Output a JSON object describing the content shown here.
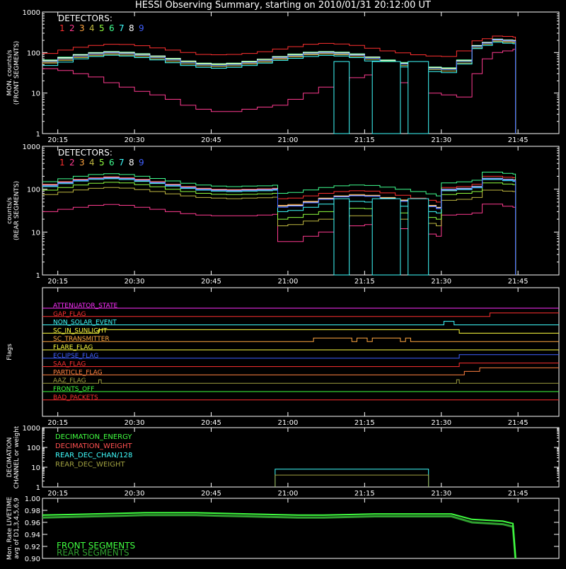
{
  "title": "HESSI Observing Summary, starting on 2010/01/31 20:12:00 UT",
  "colors": {
    "background": "#000000",
    "axis": "#ffffff",
    "det": [
      "#ff3030",
      "#ff3b8f",
      "#ffa640",
      "#c0b840",
      "#90ff40",
      "#40ff90",
      "#40ffff",
      "#ffffff",
      "#4060ff"
    ]
  },
  "time_ticks": [
    "20:15",
    "20:30",
    "20:45",
    "21:00",
    "21:15",
    "21:30",
    "21:45"
  ],
  "chart_data": [
    {
      "type": "line",
      "id": "front",
      "ylabel_lines": [
        "MON. counts/s",
        "(FRONT SEGMENTS)"
      ],
      "y_ticks": [
        "1",
        "10",
        "100",
        "1000"
      ],
      "ylim": [
        1,
        1000
      ],
      "log": true,
      "legend_title": "DETECTORS:",
      "legend_numbers": [
        "1",
        "2",
        "3",
        "4",
        "5",
        "6",
        "7",
        "8",
        "9"
      ],
      "x_minutes": [
        0,
        3,
        6,
        9,
        12,
        15,
        18,
        21,
        24,
        27,
        30,
        33,
        36,
        39,
        42,
        45,
        48,
        51,
        54,
        57,
        60,
        63,
        66,
        69,
        72,
        75,
        78,
        81,
        84,
        86,
        88,
        90,
        92,
        92.5
      ],
      "series": [
        {
          "det": 0,
          "values": [
            95,
            115,
            135,
            150,
            160,
            158,
            148,
            130,
            115,
            100,
            90,
            88,
            90,
            95,
            105,
            122,
            140,
            160,
            168,
            162,
            150,
            128,
            110,
            98,
            88,
            82,
            80,
            110,
            195,
            220,
            255,
            250,
            240,
            1
          ]
        },
        {
          "det": 1,
          "values": [
            40,
            36,
            30,
            25,
            18,
            14,
            11,
            9,
            7,
            5,
            4,
            3.5,
            3.5,
            4,
            4.5,
            5,
            7,
            10,
            14,
            20,
            24,
            28,
            25,
            18,
            14,
            10,
            9,
            8,
            30,
            70,
            100,
            110,
            120,
            1
          ]
        },
        {
          "det": 2,
          "values": [
            58,
            68,
            80,
            90,
            96,
            92,
            85,
            75,
            65,
            56,
            50,
            48,
            50,
            55,
            62,
            72,
            82,
            92,
            96,
            92,
            85,
            72,
            60,
            52,
            45,
            40,
            38,
            60,
            140,
            170,
            200,
            190,
            185,
            1
          ]
        },
        {
          "det": 3,
          "values": [
            55,
            64,
            75,
            84,
            90,
            86,
            80,
            70,
            60,
            52,
            47,
            45,
            47,
            52,
            58,
            68,
            78,
            88,
            92,
            88,
            80,
            68,
            56,
            48,
            42,
            38,
            35,
            55,
            130,
            160,
            190,
            180,
            175,
            1
          ]
        },
        {
          "det": 4,
          "values": [
            62,
            72,
            84,
            94,
            100,
            96,
            88,
            78,
            68,
            58,
            52,
            50,
            52,
            58,
            65,
            76,
            86,
            96,
            100,
            96,
            88,
            74,
            62,
            54,
            47,
            42,
            40,
            62,
            145,
            175,
            210,
            200,
            195,
            1
          ]
        },
        {
          "det": 5,
          "values": [
            66,
            77,
            90,
            100,
            106,
            102,
            94,
            83,
            72,
            62,
            55,
            53,
            55,
            61,
            69,
            80,
            92,
            102,
            106,
            102,
            93,
            78,
            66,
            57,
            49,
            44,
            42,
            66,
            150,
            180,
            215,
            205,
            200,
            1
          ]
        },
        {
          "det": 6,
          "values": [
            48,
            58,
            70,
            80,
            86,
            82,
            75,
            66,
            56,
            48,
            43,
            41,
            43,
            48,
            55,
            64,
            72,
            80,
            85,
            82,
            75,
            62,
            50,
            44,
            38,
            34,
            32,
            52,
            125,
            150,
            180,
            170,
            165,
            1
          ]
        },
        {
          "det": 7,
          "values": [
            64,
            75,
            88,
            98,
            104,
            100,
            92,
            82,
            71,
            61,
            54,
            52,
            54,
            60,
            68,
            79,
            90,
            100,
            104,
            100,
            91,
            77,
            64,
            55,
            48,
            43,
            41,
            64,
            148,
            178,
            212,
            202,
            198,
            1
          ]
        },
        {
          "det": 8,
          "values": [
            60,
            70,
            82,
            92,
            98,
            94,
            86,
            76,
            66,
            56,
            50,
            48,
            50,
            56,
            63,
            74,
            84,
            94,
            98,
            94,
            86,
            72,
            60,
            52,
            45,
            40,
            38,
            60,
            140,
            170,
            205,
            195,
            190,
            1
          ]
        }
      ],
      "gaps": [
        {
          "det": 6,
          "x0": 57,
          "x1": 60,
          "value": 1
        },
        {
          "det": 6,
          "x0": 64.5,
          "x1": 70,
          "value": 1
        },
        {
          "det": 6,
          "x0": 71.5,
          "x1": 75.5,
          "value": 1
        }
      ]
    },
    {
      "type": "line",
      "id": "rear",
      "ylabel_lines": [
        "counts/s",
        "(REAR SEGMENTS)"
      ],
      "y_ticks": [
        "1",
        "10",
        "100",
        "1000"
      ],
      "ylim": [
        1,
        1000
      ],
      "log": true,
      "legend_title": "DETECTORS:",
      "legend_numbers": [
        "1",
        "2",
        "3",
        "4",
        "5",
        "6",
        "7",
        "8",
        "9"
      ],
      "x_minutes": [
        0,
        3,
        6,
        9,
        12,
        15,
        18,
        21,
        24,
        27,
        30,
        33,
        36,
        39,
        42,
        45,
        46,
        48,
        51,
        54,
        57,
        60,
        63,
        66,
        69,
        72,
        75,
        77,
        78,
        81,
        84,
        86,
        88,
        90,
        92,
        92.5
      ],
      "series": [
        {
          "det": 0,
          "values": [
            130,
            150,
            170,
            185,
            195,
            185,
            170,
            150,
            130,
            115,
            105,
            100,
            98,
            100,
            102,
            105,
            60,
            62,
            70,
            80,
            88,
            92,
            90,
            82,
            72,
            62,
            55,
            50,
            110,
            115,
            130,
            200,
            200,
            190,
            185,
            1
          ]
        },
        {
          "det": 1,
          "values": [
            30,
            34,
            38,
            42,
            44,
            42,
            38,
            34,
            30,
            27,
            25,
            24,
            24,
            24,
            25,
            26,
            6,
            6,
            8,
            10,
            12,
            14,
            15,
            14,
            12,
            10,
            9,
            8,
            25,
            26,
            28,
            45,
            45,
            40,
            38,
            1
          ]
        },
        {
          "det": 2,
          "values": [
            120,
            140,
            160,
            175,
            180,
            170,
            155,
            138,
            120,
            106,
            96,
            92,
            90,
            92,
            94,
            98,
            42,
            44,
            52,
            62,
            70,
            75,
            72,
            64,
            56,
            48,
            42,
            38,
            95,
            100,
            110,
            175,
            175,
            165,
            160,
            1
          ]
        },
        {
          "det": 3,
          "values": [
            75,
            85,
            96,
            105,
            110,
            106,
            98,
            88,
            78,
            70,
            64,
            62,
            60,
            62,
            63,
            65,
            14,
            15,
            18,
            20,
            22,
            24,
            24,
            22,
            20,
            18,
            16,
            14,
            55,
            58,
            64,
            95,
            95,
            90,
            88,
            1
          ]
        },
        {
          "det": 4,
          "values": [
            95,
            110,
            125,
            138,
            145,
            140,
            128,
            114,
            100,
            88,
            80,
            76,
            75,
            76,
            78,
            80,
            20,
            22,
            26,
            30,
            34,
            36,
            35,
            32,
            28,
            24,
            22,
            20,
            75,
            80,
            88,
            140,
            140,
            132,
            128,
            1
          ]
        },
        {
          "det": 5,
          "values": [
            150,
            175,
            200,
            220,
            230,
            220,
            200,
            178,
            156,
            138,
            125,
            118,
            115,
            118,
            120,
            124,
            80,
            84,
            96,
            110,
            120,
            125,
            122,
            112,
            100,
            88,
            78,
            70,
            140,
            148,
            162,
            250,
            250,
            235,
            225,
            1
          ]
        },
        {
          "det": 6,
          "values": [
            115,
            135,
            155,
            170,
            175,
            168,
            152,
            136,
            118,
            104,
            95,
            90,
            88,
            90,
            92,
            95,
            30,
            32,
            38,
            45,
            50,
            52,
            50,
            45,
            40,
            34,
            30,
            28,
            92,
            98,
            108,
            168,
            168,
            158,
            152,
            1
          ]
        },
        {
          "det": 7,
          "values": [
            125,
            145,
            165,
            180,
            188,
            180,
            165,
            146,
            127,
            112,
            102,
            97,
            95,
            97,
            99,
            102,
            40,
            42,
            50,
            60,
            68,
            72,
            70,
            62,
            54,
            46,
            41,
            37,
            100,
            105,
            116,
            180,
            180,
            170,
            165,
            1
          ]
        },
        {
          "det": 8,
          "values": [
            120,
            140,
            160,
            176,
            182,
            175,
            160,
            142,
            123,
            108,
            98,
            94,
            92,
            94,
            96,
            99,
            38,
            40,
            48,
            58,
            66,
            70,
            68,
            60,
            52,
            44,
            39,
            35,
            97,
            102,
            112,
            175,
            175,
            165,
            160,
            1
          ]
        }
      ],
      "gaps": [
        {
          "det": 6,
          "x0": 57,
          "x1": 60,
          "value": 1
        },
        {
          "det": 6,
          "x0": 64.5,
          "x1": 70,
          "value": 1
        },
        {
          "det": 6,
          "x0": 71.5,
          "x1": 75.5,
          "value": 1
        }
      ]
    },
    {
      "type": "line",
      "id": "flags",
      "ylabel_lines": [
        "Flags"
      ],
      "items": [
        {
          "label": "ATTENUATOR_STATE",
          "color": "#ff30ff",
          "steps": []
        },
        {
          "label": "GAP_FLAG",
          "color": "#ff3030",
          "steps": [
            [
              87.5,
              1
            ]
          ]
        },
        {
          "label": "NON_SOLAR_EVENT",
          "color": "#40ffff",
          "steps": [
            [
              78.5,
              1
            ],
            [
              80.5,
              0
            ]
          ]
        },
        {
          "label": "SC_IN_SUNLIGHT",
          "color": "#ffff40",
          "steps": [
            [
              11,
              1
            ],
            [
              81.5,
              0
            ]
          ]
        },
        {
          "label": "SC_TRANSMITTER",
          "color": "#ffa640",
          "steps": [
            [
              53,
              1
            ],
            [
              60.5,
              0
            ],
            [
              61.5,
              1
            ],
            [
              63.5,
              0
            ],
            [
              64.5,
              1
            ],
            [
              70,
              0
            ],
            [
              71,
              1
            ],
            [
              72,
              0
            ]
          ]
        },
        {
          "label": "FLARE_FLAG",
          "color": "#ffff40",
          "steps": []
        },
        {
          "label": "ECLIPSE_FLAG",
          "color": "#4060ff",
          "steps": [
            [
              11.5,
              0
            ],
            [
              81.5,
              1
            ]
          ]
        },
        {
          "label": "SAA_FLAG",
          "color": "#ff3030",
          "steps": [
            [
              81.5,
              1
            ]
          ]
        },
        {
          "label": "PARTICLE_FLAG",
          "color": "#ff8040",
          "steps": [
            [
              82.5,
              1
            ],
            [
              85.5,
              2
            ]
          ]
        },
        {
          "label": "AAZ_FLAG",
          "color": "#a0a040",
          "steps": [
            [
              11,
              1
            ],
            [
              11.5,
              0
            ],
            [
              81,
              1
            ],
            [
              81.5,
              0
            ]
          ]
        },
        {
          "label": "FRONTS_OFF",
          "color": "#40ff40",
          "steps": []
        },
        {
          "label": "BAD_PACKETS",
          "color": "#ff3030",
          "steps": []
        }
      ]
    },
    {
      "type": "line",
      "id": "decimation",
      "ylabel_lines": [
        "DECIMATION",
        "CHANNEL or weight"
      ],
      "y_ticks": [
        "1",
        "10",
        "100",
        "1000"
      ],
      "ylim": [
        1,
        1000
      ],
      "log": true,
      "legend": [
        {
          "label": "DECIMATION_ENERGY",
          "color": "#40ff40"
        },
        {
          "label": "DECIMATION_WEIGHT",
          "color": "#ff5050"
        },
        {
          "label": "REAR_DEC_CHAN/128",
          "color": "#40ffff"
        },
        {
          "label": "REAR_DEC_WEIGHT",
          "color": "#a0a040"
        }
      ],
      "boxes": [
        {
          "color": "#40ffff",
          "x0": 45.5,
          "x1": 75.5,
          "value": 8
        },
        {
          "color": "#a0a040",
          "x0": 45.5,
          "x1": 75.5,
          "value": 4
        }
      ]
    },
    {
      "type": "line",
      "id": "livetime",
      "ylabel_lines": [
        "Mon. Rate LIVETIME",
        "avg of D1,3,4,5,6,9"
      ],
      "y_ticks": [
        "0.90",
        "0.92",
        "0.94",
        "0.96",
        "0.98",
        "1.00"
      ],
      "ylim": [
        0.9,
        1.0
      ],
      "log": false,
      "legend": [
        {
          "label": "FRONT SEGMENTS",
          "color": "#40ff40"
        },
        {
          "label": "REAR SEGMENTS",
          "color": "#30a030"
        }
      ],
      "x": [
        0,
        5,
        10,
        15,
        20,
        25,
        30,
        35,
        40,
        45,
        50,
        55,
        60,
        65,
        70,
        75,
        80,
        84,
        88,
        90,
        92,
        92.5
      ],
      "front": [
        0.972,
        0.973,
        0.974,
        0.975,
        0.976,
        0.976,
        0.976,
        0.975,
        0.974,
        0.973,
        0.972,
        0.972,
        0.973,
        0.974,
        0.974,
        0.974,
        0.974,
        0.965,
        0.963,
        0.962,
        0.958,
        0.9
      ],
      "rear": [
        0.968,
        0.969,
        0.97,
        0.971,
        0.972,
        0.972,
        0.972,
        0.971,
        0.97,
        0.969,
        0.968,
        0.968,
        0.969,
        0.97,
        0.97,
        0.97,
        0.97,
        0.96,
        0.958,
        0.957,
        0.953,
        0.9
      ]
    }
  ]
}
